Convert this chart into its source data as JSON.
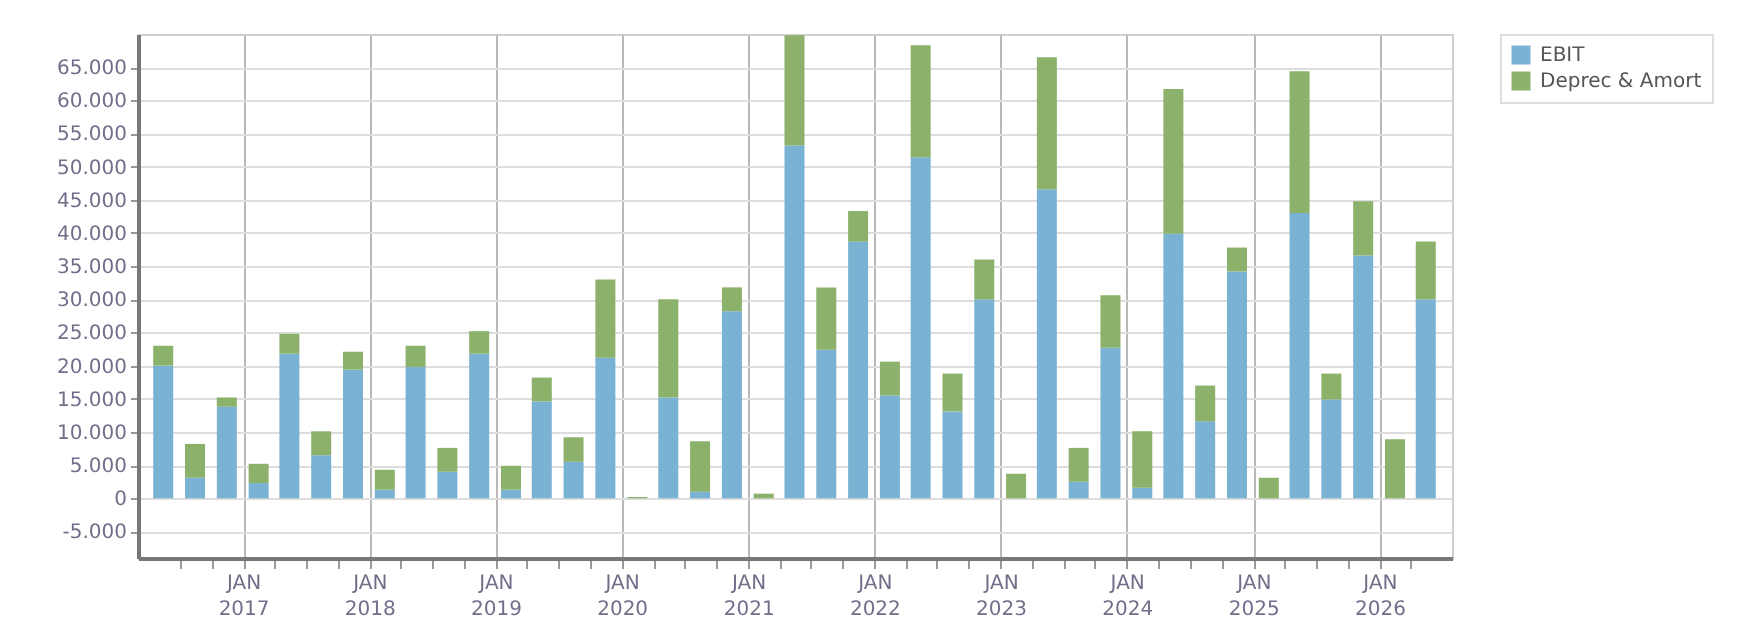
{
  "chart_data": {
    "type": "bar",
    "stacked": true,
    "x": [
      "2016-05-15",
      "2016-08-15",
      "2016-11-15",
      "2017-02-15",
      "2017-05-15",
      "2017-08-15",
      "2017-11-15",
      "2018-02-15",
      "2018-05-15",
      "2018-08-15",
      "2018-11-15",
      "2019-02-15",
      "2019-05-15",
      "2019-08-15",
      "2019-11-15",
      "2020-02-15",
      "2020-05-15",
      "2020-08-15",
      "2020-11-15",
      "2021-02-15",
      "2021-05-15",
      "2021-08-15",
      "2021-11-15",
      "2022-02-15",
      "2022-05-15",
      "2022-08-15",
      "2022-11-15",
      "2023-02-15",
      "2023-05-15",
      "2023-08-15",
      "2023-11-15",
      "2024-02-15",
      "2024-05-15",
      "2024-08-15",
      "2024-11-15",
      "2025-02-15",
      "2025-05-15",
      "2025-08-15",
      "2025-11-15",
      "2026-02-15",
      "2026-05-15"
    ],
    "series": [
      {
        "name": "EBIT",
        "color": "#7ab2d4",
        "values": [
          20000,
          3100,
          13800,
          2300,
          21800,
          6500,
          19400,
          1300,
          19800,
          4000,
          21800,
          1300,
          14600,
          5500,
          21200,
          0,
          15200,
          1000,
          28200,
          0,
          53200,
          22400,
          38700,
          15500,
          51400,
          13100,
          30000,
          0,
          46600,
          2500,
          22700,
          1600,
          39900,
          11600,
          34200,
          0,
          43000,
          14900,
          36600,
          0,
          30000
        ]
      },
      {
        "name": "Deprec & Amort",
        "color": "#8bb16a",
        "values": [
          3000,
          5100,
          1400,
          2900,
          3000,
          3600,
          2700,
          3000,
          3200,
          3600,
          3400,
          3600,
          3600,
          3700,
          11800,
          200,
          14800,
          7600,
          3600,
          700,
          16600,
          9400,
          4600,
          5100,
          16900,
          5700,
          6000,
          3700,
          19900,
          5100,
          7900,
          8500,
          21800,
          5400,
          3600,
          3100,
          21400,
          3900,
          8200,
          8900,
          8700
        ]
      }
    ],
    "xlim": [
      "2016-04-01",
      "2026-07-01"
    ],
    "xticks": [
      {
        "value": "2016-07-01",
        "label": null
      },
      {
        "value": "2016-10-01",
        "label": null
      },
      {
        "value": "2017-01-01",
        "label": "JAN\n2017"
      },
      {
        "value": "2017-04-01",
        "label": null
      },
      {
        "value": "2017-07-01",
        "label": null
      },
      {
        "value": "2017-10-01",
        "label": null
      },
      {
        "value": "2018-01-01",
        "label": "JAN\n2018"
      },
      {
        "value": "2018-04-01",
        "label": null
      },
      {
        "value": "2018-07-01",
        "label": null
      },
      {
        "value": "2018-10-01",
        "label": null
      },
      {
        "value": "2019-01-01",
        "label": "JAN\n2019"
      },
      {
        "value": "2019-04-01",
        "label": null
      },
      {
        "value": "2019-07-01",
        "label": null
      },
      {
        "value": "2019-10-01",
        "label": null
      },
      {
        "value": "2020-01-01",
        "label": "JAN\n2020"
      },
      {
        "value": "2020-04-01",
        "label": null
      },
      {
        "value": "2020-07-01",
        "label": null
      },
      {
        "value": "2020-10-01",
        "label": null
      },
      {
        "value": "2021-01-01",
        "label": "JAN\n2021"
      },
      {
        "value": "2021-04-01",
        "label": null
      },
      {
        "value": "2021-07-01",
        "label": null
      },
      {
        "value": "2021-10-01",
        "label": null
      },
      {
        "value": "2022-01-01",
        "label": "JAN\n2022"
      },
      {
        "value": "2022-04-01",
        "label": null
      },
      {
        "value": "2022-07-01",
        "label": null
      },
      {
        "value": "2022-10-01",
        "label": null
      },
      {
        "value": "2023-01-01",
        "label": "JAN\n2023"
      },
      {
        "value": "2023-04-01",
        "label": null
      },
      {
        "value": "2023-07-01",
        "label": null
      },
      {
        "value": "2023-10-01",
        "label": null
      },
      {
        "value": "2024-01-01",
        "label": "JAN\n2024"
      },
      {
        "value": "2024-04-01",
        "label": null
      },
      {
        "value": "2024-07-01",
        "label": null
      },
      {
        "value": "2024-10-01",
        "label": null
      },
      {
        "value": "2025-01-01",
        "label": "JAN\n2025"
      },
      {
        "value": "2025-04-01",
        "label": null
      },
      {
        "value": "2025-07-01",
        "label": null
      },
      {
        "value": "2025-10-01",
        "label": null
      },
      {
        "value": "2026-01-01",
        "label": "JAN\n2026"
      },
      {
        "value": "2026-04-01",
        "label": null
      }
    ],
    "ylim": [
      -9000,
      70000
    ],
    "yticks": [
      {
        "value": -5000,
        "label": "-5.000"
      },
      {
        "value": 0,
        "label": "0"
      },
      {
        "value": 5000,
        "label": "5.000"
      },
      {
        "value": 10000,
        "label": "10.000"
      },
      {
        "value": 15000,
        "label": "15.000"
      },
      {
        "value": 20000,
        "label": "20.000"
      },
      {
        "value": 25000,
        "label": "25.000"
      },
      {
        "value": 30000,
        "label": "30.000"
      },
      {
        "value": 35000,
        "label": "35.000"
      },
      {
        "value": 40000,
        "label": "40.000"
      },
      {
        "value": 45000,
        "label": "45.000"
      },
      {
        "value": 50000,
        "label": "50.000"
      },
      {
        "value": 55000,
        "label": "55.000"
      },
      {
        "value": 60000,
        "label": "60.000"
      },
      {
        "value": 65000,
        "label": "65.000"
      }
    ],
    "grid": true,
    "legend": "top right"
  }
}
